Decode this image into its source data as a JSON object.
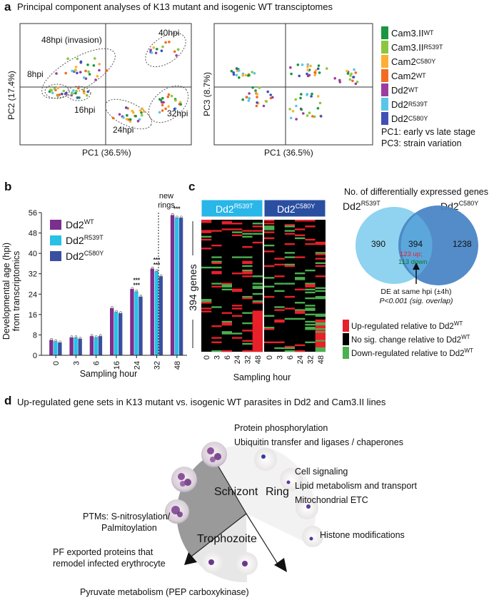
{
  "panel_a": {
    "letter": "a",
    "title": "Principal component analyses of K13 mutant and isogenic WT transciptomes",
    "pca1": {
      "xlabel": "PC1 (36.5%)",
      "ylabel": "PC2 (17.4%)",
      "clusters": [
        "48hpi (invasion)",
        "40hpi",
        "8hpi",
        "16hpi",
        "24hpi",
        "32hpi"
      ]
    },
    "pca2": {
      "xlabel": "PC1 (36.5%)",
      "ylabel": "PC3 (8.7%)"
    },
    "legend": [
      {
        "base": "Cam3.II",
        "sup": "WT",
        "color": "#1a9641"
      },
      {
        "base": "Cam3.II",
        "sup": "R539T",
        "color": "#8cc63f"
      },
      {
        "base": "Cam2",
        "sup": "C580Y",
        "color": "#fbb034"
      },
      {
        "base": "Cam2",
        "sup": "WT",
        "color": "#f26b21"
      },
      {
        "base": "Dd2",
        "sup": "WT",
        "color": "#9b3d9e"
      },
      {
        "base": "Dd2",
        "sup": "R539T",
        "color": "#5bc5e8"
      },
      {
        "base": "Dd2",
        "sup": "C580Y",
        "color": "#3f51b5"
      }
    ],
    "notes": [
      "PC1: early vs late stage",
      "PC3: strain variation"
    ]
  },
  "panel_b": {
    "letter": "b",
    "chart_data": {
      "type": "bar",
      "title": "",
      "xlabel": "Sampling hour",
      "ylabel": "Developmental age (hpi) from transcriptomics",
      "ylabel_lines": [
        "Developmental age (hpi)",
        "from transcriptomics"
      ],
      "categories": [
        "0",
        "3",
        "6",
        "16",
        "24",
        "32",
        "48"
      ],
      "ylim": [
        0,
        56
      ],
      "yticks": [
        "0",
        "8",
        "16",
        "24",
        "32",
        "40",
        "48",
        "56"
      ],
      "series": [
        {
          "name": "Dd2",
          "sup": "WT",
          "color": "#7b2f8e",
          "values": [
            6,
            7,
            7.5,
            18.5,
            26,
            34,
            55
          ]
        },
        {
          "name": "Dd2",
          "sup": "R539T",
          "color": "#29c0e6",
          "values": [
            5.5,
            7,
            7,
            17,
            25,
            33,
            54
          ]
        },
        {
          "name": "Dd2",
          "sup": "C580Y",
          "color": "#3a4fa0",
          "values": [
            5,
            6.5,
            7.5,
            16.5,
            23,
            31,
            54
          ]
        }
      ],
      "significance": [
        "***",
        "***",
        "***",
        "***",
        "***"
      ],
      "annotation": "new rings"
    }
  },
  "panel_c": {
    "letter": "c",
    "heatmap_headers": [
      {
        "base": "Dd2",
        "sup": "R539T"
      },
      {
        "base": "Dd2",
        "sup": "C580Y"
      }
    ],
    "row_label": "394 genes",
    "xticks": [
      "0",
      "3",
      "6",
      "24",
      "32",
      "48",
      "0",
      "3",
      "6",
      "24",
      "32",
      "48"
    ],
    "xlabel": "Sampling hour",
    "venn": {
      "title": "No. of differentially expressed genes",
      "left": {
        "base": "Dd2",
        "sup": "R539T",
        "count": "390",
        "color": "#8fd3f0"
      },
      "right": {
        "base": "Dd2",
        "sup": "C580Y",
        "count": "1238",
        "color": "#4a86c5"
      },
      "overlap": {
        "count": "394",
        "up": "123 up;",
        "down": "113 down"
      },
      "note1": "DE at same hpi (±4h)",
      "note2": "P<0.001 (sig. overlap)"
    },
    "key": [
      {
        "text": "Up-regulated relative to Dd2",
        "sup": "WT",
        "color": "#e8202a"
      },
      {
        "text": "No sig. change relative to Dd2",
        "sup": "WT",
        "color": "#000000"
      },
      {
        "text": "Down-regulated relative to Dd2",
        "sup": "WT",
        "color": "#4caf50"
      }
    ]
  },
  "panel_d": {
    "letter": "d",
    "title": "Up-regulated gene sets in K13 mutant vs. isogenic WT parasites in Dd2 and Cam3.II lines",
    "stages": [
      "Schizont",
      "Ring",
      "Trophozoite"
    ],
    "gene_sets": [
      "Protein phosphorylation",
      "Ubiquitin transfer and ligases / chaperones",
      "Cell signaling",
      "Lipid metabolism and transport",
      "Mitochondrial ETC",
      "Histone modifications",
      "PTMs: S-nitrosylation/",
      "Palmitoylation",
      "PF exported proteins that",
      "remodel infected erythrocyte",
      "Pyruvate metabolism (PEP carboxykinase)"
    ]
  }
}
